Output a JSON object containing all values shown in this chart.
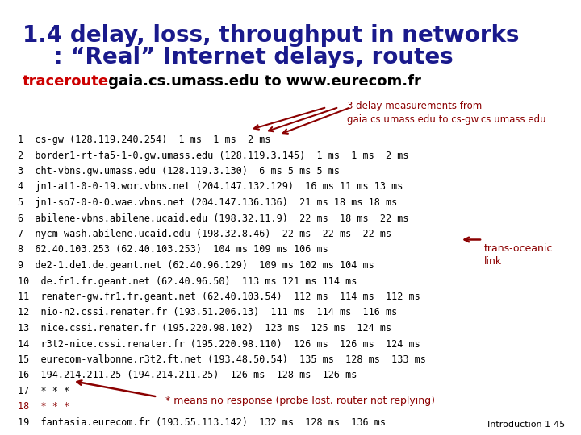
{
  "title_line1": "1.4 delay, loss, throughput in networks",
  "title_line2": "    : “Real” Internet delays, routes",
  "title_color": "#1a1a8c",
  "traceroute_label": "traceroute:",
  "traceroute_label_color": "#cc0000",
  "traceroute_rest": " gaia.cs.umass.edu to www.eurecom.fr",
  "traceroute_color": "#000000",
  "annotation1_text": "3 delay measurements from\ngaia.cs.umass.edu to cs-gw.cs.umass.edu",
  "annotation2_text": "trans-oceanic\nlink",
  "star_annotation": "* means no response (probe lost, router not replying)",
  "lines": [
    "1  cs-gw (128.119.240.254)  1 ms  1 ms  2 ms",
    "2  border1-rt-fa5-1-0.gw.umass.edu (128.119.3.145)  1 ms  1 ms  2 ms",
    "3  cht-vbns.gw.umass.edu (128.119.3.130)  6 ms 5 ms 5 ms",
    "4  jn1-at1-0-0-19.wor.vbns.net (204.147.132.129)  16 ms 11 ms 13 ms",
    "5  jn1-so7-0-0-0.wae.vbns.net (204.147.136.136)  21 ms 18 ms 18 ms",
    "6  abilene-vbns.abilene.ucaid.edu (198.32.11.9)  22 ms  18 ms  22 ms",
    "7  nycm-wash.abilene.ucaid.edu (198.32.8.46)  22 ms  22 ms  22 ms",
    "8  62.40.103.253 (62.40.103.253)  104 ms 109 ms 106 ms",
    "9  de2-1.de1.de.geant.net (62.40.96.129)  109 ms 102 ms 104 ms",
    "10  de.fr1.fr.geant.net (62.40.96.50)  113 ms 121 ms 114 ms",
    "11  renater-gw.fr1.fr.geant.net (62.40.103.54)  112 ms  114 ms  112 ms",
    "12  nio-n2.cssi.renater.fr (193.51.206.13)  111 ms  114 ms  116 ms",
    "13  nice.cssi.renater.fr (195.220.98.102)  123 ms  125 ms  124 ms",
    "14  r3t2-nice.cssi.renater.fr (195.220.98.110)  126 ms  126 ms  124 ms",
    "15  eurecom-valbonne.r3t2.ft.net (193.48.50.54)  135 ms  128 ms  133 ms",
    "16  194.214.211.25 (194.214.211.25)  126 ms  128 ms  126 ms",
    "17  * * *",
    "18  * * *",
    "19  fantasia.eurecom.fr (193.55.113.142)  132 ms  128 ms  136 ms"
  ],
  "line_color": "#000000",
  "bg_color": "#ffffff",
  "footer_text": "Introduction 1-45",
  "footer_color": "#000000",
  "dark_red": "#8b0000"
}
